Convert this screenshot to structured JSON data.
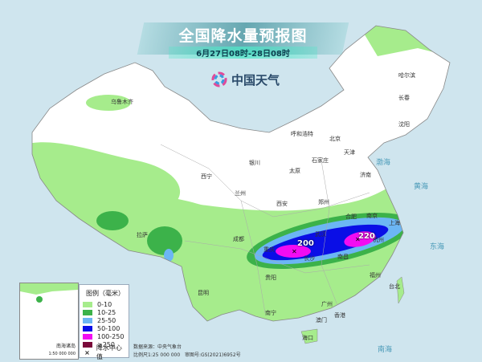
{
  "header": {
    "title": "全国降水量预报图",
    "subtitle": "6月27日08时-28日08时",
    "logo_text": "中国天气"
  },
  "legend": {
    "title": "图例（毫米）",
    "items": [
      {
        "label": "0-10",
        "color": "#a6ec8c"
      },
      {
        "label": "10-25",
        "color": "#3cb24a"
      },
      {
        "label": "25-50",
        "color": "#6cb6f4"
      },
      {
        "label": "50-100",
        "color": "#0a0ee6"
      },
      {
        "label": "100-250",
        "color": "#f20cf2"
      },
      {
        "label": "≥250",
        "color": "#7a0a3a"
      }
    ],
    "center_label": "降水中心值"
  },
  "rain_centers": [
    {
      "city_near": "重庆",
      "value": "200"
    },
    {
      "city_near": "杭州",
      "value": "220"
    }
  ],
  "cities": [
    "乌鲁木齐",
    "哈尔滨",
    "长春",
    "沈阳",
    "呼和浩特",
    "北京",
    "天津",
    "石家庄",
    "太原",
    "济南",
    "银川",
    "西宁",
    "兰州",
    "郑州",
    "西安",
    "合肥",
    "南京",
    "上海",
    "杭州",
    "武汉",
    "长沙",
    "南昌",
    "成都",
    "重庆",
    "贵阳",
    "昆明",
    "拉萨",
    "福州",
    "台北",
    "南宁",
    "广州",
    "香港",
    "澳门",
    "海口"
  ],
  "seas": [
    "渤海",
    "黄海",
    "东海",
    "南海"
  ],
  "footer": {
    "source": "数据来源：中央气象台",
    "scale": "比例尺1:25 000 000",
    "review_no": "审图号:GS(2021)6952号"
  },
  "inset": {
    "label": "南海诸岛",
    "scale": "1:50 000 000"
  }
}
